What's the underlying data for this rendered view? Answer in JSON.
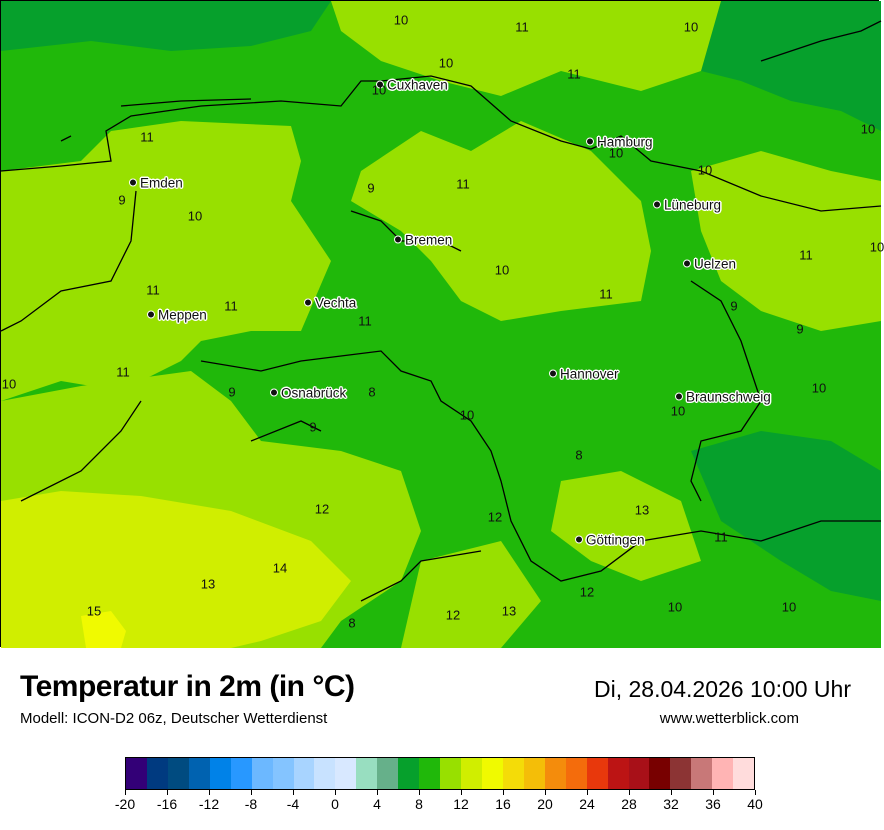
{
  "title": "Temperatur in 2m (in °C)",
  "subtitle": "Modell: ICON-D2 06z, Deutscher Wetterdienst",
  "datetime": "Di, 28.04.2026 10:00 Uhr",
  "website": "www.wetterblick.com",
  "cities": [
    "Cuxhaven",
    "Hamburg",
    "Emden",
    "Lüneburg",
    "Bremen",
    "Uelzen",
    "Vechta",
    "Meppen",
    "Hannover",
    "Osnabrück",
    "Braunschweig",
    "Göttingen"
  ],
  "values": [
    "10",
    "11",
    "10",
    "10",
    "11",
    "10",
    "11",
    "10",
    "11",
    "9",
    "10",
    "9",
    "10",
    "10",
    "10",
    "11",
    "11",
    "11",
    "11",
    "10",
    "11",
    "11",
    "9",
    "10",
    "9",
    "9",
    "10",
    "9",
    "8",
    "10",
    "10",
    "8",
    "12",
    "12",
    "13",
    "11",
    "13",
    "14",
    "15",
    "12",
    "13",
    "12",
    "10",
    "10",
    "8"
  ],
  "colorbar": {
    "ticks": [
      "-20",
      "-16",
      "-12",
      "-8",
      "-4",
      "0",
      "4",
      "8",
      "12",
      "16",
      "20",
      "24",
      "28",
      "32",
      "36",
      "40"
    ],
    "colors": [
      "#330077",
      "#003a80",
      "#004b80",
      "#0062b0",
      "#0082e8",
      "#2898ff",
      "#6cb8ff",
      "#84c4ff",
      "#a8d4ff",
      "#c8e2ff",
      "#d8e8ff",
      "#98dec0",
      "#66b08a",
      "#06a02c",
      "#20b80a",
      "#98e000",
      "#d0ee00",
      "#f0fa00",
      "#f4dc08",
      "#f4be08",
      "#f48c0c",
      "#f46c0c",
      "#e8380c",
      "#bc1414",
      "#a81018",
      "#780000",
      "#8c3434",
      "#c87878",
      "#ffb4b4",
      "#ffdcdc"
    ]
  }
}
